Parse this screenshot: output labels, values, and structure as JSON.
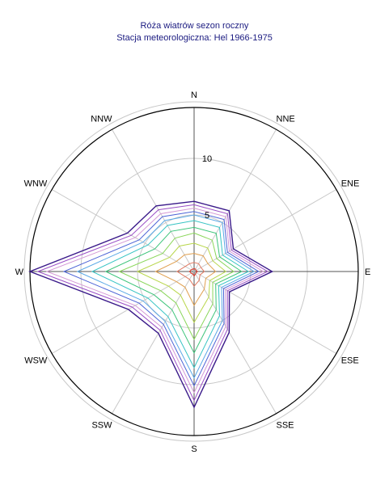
{
  "chart_data": {
    "type": "radar",
    "title": "Róża wiatrów sezon roczny",
    "subtitle": "Stacja meteorologiczna: Hel 1966-1975",
    "directions": [
      "N",
      "NNE",
      "ENE",
      "E",
      "ESE",
      "SSE",
      "S",
      "SSW",
      "WSW",
      "W",
      "WNW",
      "NNW"
    ],
    "radial_ticks": [
      5,
      10
    ],
    "rmax": 14.5,
    "series": [
      {
        "color": "#3a1a8a",
        "values": [
          6.2,
          6.2,
          4.0,
          6.9,
          3.6,
          6.2,
          12.0,
          6.3,
          6.7,
          14.5,
          6.8,
          6.7
        ]
      },
      {
        "color": "#9a4ec6",
        "values": [
          5.9,
          5.9,
          3.8,
          6.5,
          3.4,
          5.9,
          11.4,
          6.0,
          6.3,
          13.8,
          6.4,
          6.3
        ]
      },
      {
        "color": "#d49ad6",
        "values": [
          5.6,
          5.6,
          3.6,
          6.1,
          3.2,
          5.6,
          10.7,
          5.7,
          6.0,
          13.0,
          6.0,
          5.9
        ]
      },
      {
        "color": "#4c63d6",
        "values": [
          5.3,
          5.3,
          3.4,
          5.7,
          3.0,
          5.3,
          10.1,
          5.4,
          5.6,
          11.5,
          5.6,
          5.6
        ]
      },
      {
        "color": "#5aa8e6",
        "values": [
          5.0,
          5.0,
          3.2,
          5.3,
          2.8,
          5.0,
          9.4,
          5.1,
          5.2,
          10.3,
          5.2,
          5.2
        ]
      },
      {
        "color": "#38c4c4",
        "values": [
          4.5,
          4.5,
          2.9,
          4.8,
          2.5,
          4.5,
          8.5,
          4.6,
          4.7,
          9.0,
          4.7,
          4.7
        ]
      },
      {
        "color": "#3cc47a",
        "values": [
          3.9,
          3.9,
          2.6,
          4.2,
          2.2,
          3.9,
          7.2,
          3.9,
          4.1,
          7.8,
          4.0,
          4.1
        ]
      },
      {
        "color": "#8ad65a",
        "values": [
          3.4,
          3.2,
          2.3,
          3.5,
          1.9,
          3.3,
          6.0,
          3.2,
          3.4,
          6.6,
          3.2,
          3.4
        ]
      },
      {
        "color": "#b8d64a",
        "values": [
          2.5,
          2.4,
          1.9,
          2.8,
          1.6,
          2.6,
          4.5,
          2.4,
          2.6,
          5.0,
          2.5,
          2.6
        ]
      },
      {
        "color": "#e0a050",
        "values": [
          1.6,
          1.6,
          1.4,
          1.9,
          1.2,
          1.8,
          3.0,
          1.6,
          1.8,
          3.4,
          1.8,
          1.7
        ]
      },
      {
        "color": "#e07860",
        "values": [
          0.8,
          0.8,
          0.7,
          0.9,
          0.6,
          0.9,
          1.3,
          0.8,
          0.9,
          1.5,
          0.9,
          0.8
        ]
      },
      {
        "color": "#e03020",
        "values": [
          0.25,
          0.25,
          0.2,
          0.3,
          0.2,
          0.25,
          0.4,
          0.25,
          0.3,
          0.4,
          0.3,
          0.25
        ]
      }
    ]
  }
}
